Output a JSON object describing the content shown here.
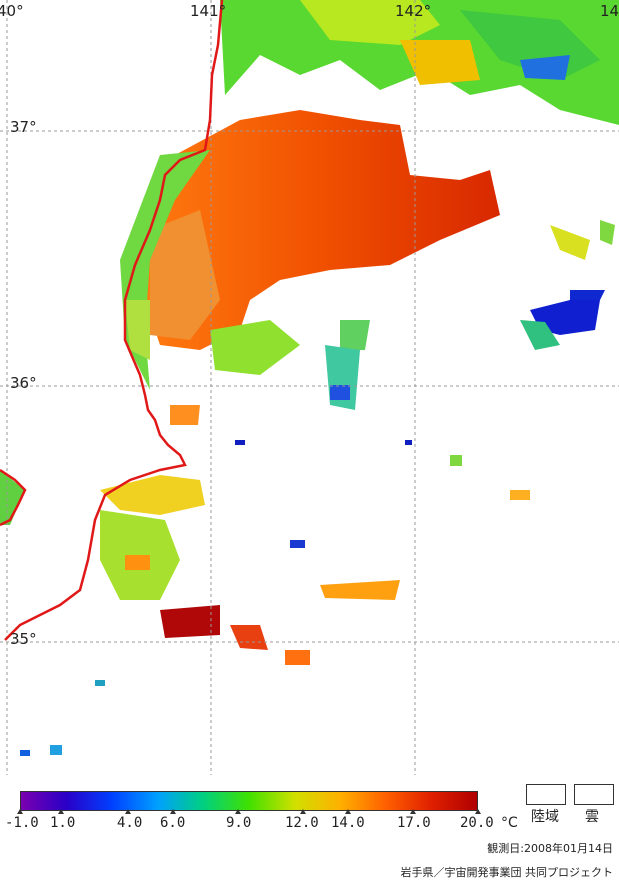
{
  "map": {
    "lon_labels": [
      "40°",
      "141°",
      "142°",
      "14"
    ],
    "lat_labels": [
      "37°",
      "36°",
      "35°"
    ],
    "coast_color": "#e01818",
    "grid_color": "#999999"
  },
  "legend": {
    "tick_labels": [
      "-1.0",
      "1.0",
      "4.0",
      "6.0",
      "9.0",
      "12.0",
      "14.0",
      "17.0",
      "20.0"
    ],
    "unit": "°C",
    "key_land": "陸域",
    "key_cloud": "雲",
    "colormap": [
      "#7a00b0",
      "#2a00c8",
      "#0040ff",
      "#00a0ff",
      "#00d080",
      "#40e000",
      "#d0e000",
      "#ffb000",
      "#ff6000",
      "#e02000",
      "#b00000"
    ]
  },
  "footer": {
    "observation_date": "観測日:2008年01月14日",
    "credit": "岩手県／宇宙開発事業団 共同プロジェクト"
  }
}
